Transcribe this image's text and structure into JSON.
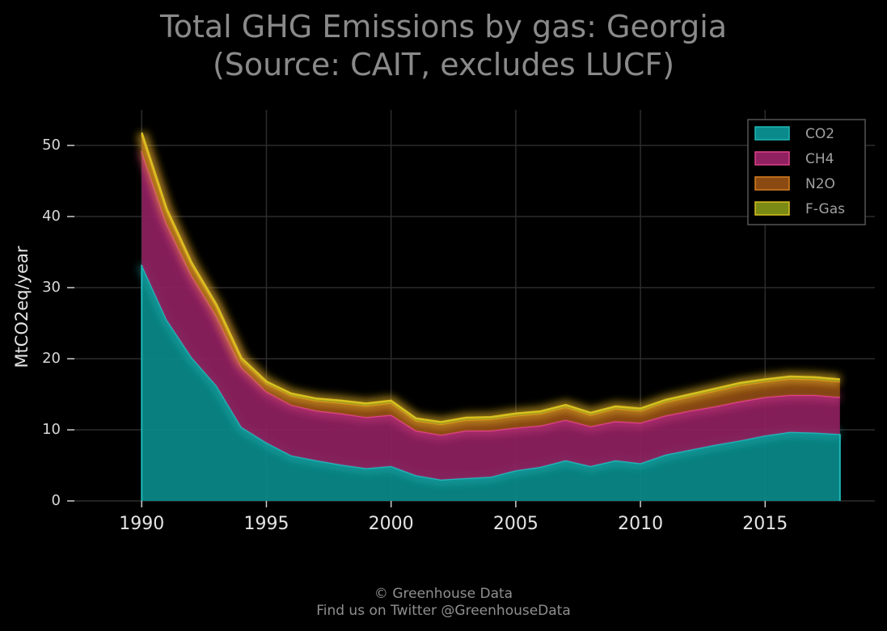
{
  "title_line1": "Total GHG Emissions by gas: Georgia",
  "title_line2": "(Source: CAIT, excludes LUCF)",
  "footer_line1": "© Greenhouse Data",
  "footer_line2": "Find us on Twitter @GreenhouseData",
  "chart_data": {
    "type": "area",
    "stacked": true,
    "ylabel": "MtCO2eq/year",
    "xlabel": "",
    "xlim": [
      1987.3,
      2019.4
    ],
    "ylim": [
      0,
      55
    ],
    "x_ticks": [
      1990,
      1995,
      2000,
      2005,
      2010,
      2015
    ],
    "y_ticks": [
      0,
      10,
      20,
      30,
      40,
      50
    ],
    "grid": true,
    "legend_position": "top-right",
    "x": [
      1990,
      1991,
      1992,
      1993,
      1994,
      1995,
      1996,
      1997,
      1998,
      1999,
      2000,
      2001,
      2002,
      2003,
      2004,
      2005,
      2006,
      2007,
      2008,
      2009,
      2010,
      2011,
      2012,
      2013,
      2014,
      2015,
      2016,
      2017,
      2018
    ],
    "series": [
      {
        "name": "CO2",
        "color": "#1fb8b8",
        "fill": "#0a8a8a",
        "values": [
          33.2,
          25.5,
          20.2,
          16.2,
          10.4,
          8.2,
          6.4,
          5.7,
          5.1,
          4.6,
          4.9,
          3.6,
          3.0,
          3.2,
          3.4,
          4.3,
          4.8,
          5.7,
          4.9,
          5.7,
          5.3,
          6.5,
          7.2,
          7.9,
          8.5,
          9.2,
          9.7,
          9.6,
          9.4
        ]
      },
      {
        "name": "CH4",
        "color": "#e0408a",
        "fill": "#8f2160",
        "values": [
          16.0,
          13.5,
          11.5,
          9.8,
          8.4,
          7.2,
          7.1,
          7.0,
          7.2,
          7.2,
          7.2,
          6.3,
          6.3,
          6.7,
          6.5,
          6.0,
          5.8,
          5.7,
          5.6,
          5.5,
          5.7,
          5.5,
          5.5,
          5.4,
          5.5,
          5.4,
          5.2,
          5.3,
          5.2
        ]
      },
      {
        "name": "N2O",
        "color": "#d98020",
        "fill": "#8a4a12",
        "values": [
          2.3,
          1.8,
          1.5,
          1.3,
          1.0,
          1.1,
          1.3,
          1.4,
          1.5,
          1.6,
          1.7,
          1.4,
          1.5,
          1.5,
          1.6,
          1.7,
          1.7,
          1.8,
          1.6,
          1.8,
          1.7,
          1.9,
          2.0,
          2.2,
          2.3,
          2.2,
          2.3,
          2.2,
          2.2
        ]
      },
      {
        "name": "F-Gas",
        "color": "#d9c020",
        "fill": "#7a8a14",
        "values": [
          0.3,
          0.3,
          0.3,
          0.3,
          0.3,
          0.3,
          0.3,
          0.3,
          0.3,
          0.3,
          0.3,
          0.3,
          0.3,
          0.3,
          0.3,
          0.3,
          0.3,
          0.3,
          0.3,
          0.3,
          0.3,
          0.3,
          0.3,
          0.3,
          0.3,
          0.3,
          0.3,
          0.3,
          0.3
        ]
      }
    ]
  }
}
